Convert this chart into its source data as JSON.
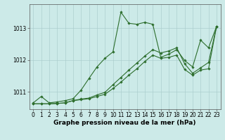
{
  "xlabel": "Graphe pression niveau de la mer (hPa)",
  "ylabel": "",
  "bg_color": "#cceae8",
  "plot_bg_color": "#cceae8",
  "grid_color": "#aacccc",
  "line_color": "#2d6e2d",
  "marker": "D",
  "marker_size": 1.8,
  "line_width": 0.8,
  "xlim": [
    -0.5,
    23.5
  ],
  "ylim": [
    1010.45,
    1013.75
  ],
  "yticks": [
    1011,
    1012,
    1013
  ],
  "xticks": [
    0,
    1,
    2,
    3,
    4,
    5,
    6,
    7,
    8,
    9,
    10,
    11,
    12,
    13,
    14,
    15,
    16,
    17,
    18,
    19,
    20,
    21,
    22,
    23
  ],
  "tick_fontsize": 5.5,
  "xlabel_fontsize": 6.5,
  "series": [
    {
      "x": [
        0,
        1,
        2,
        3,
        4,
        5,
        6,
        7,
        8,
        9,
        10,
        11,
        12,
        13,
        14,
        15,
        16,
        17,
        18,
        19,
        20,
        21,
        22,
        23
      ],
      "y": [
        1010.65,
        1010.85,
        1010.65,
        1010.68,
        1010.72,
        1010.78,
        1011.05,
        1011.42,
        1011.78,
        1012.05,
        1012.25,
        1013.5,
        1013.15,
        1013.12,
        1013.18,
        1013.12,
        1012.08,
        1012.18,
        1012.32,
        1011.98,
        1011.78,
        1012.62,
        1012.38,
        1013.05
      ]
    },
    {
      "x": [
        0,
        1,
        2,
        3,
        4,
        5,
        6,
        7,
        8,
        9,
        10,
        11,
        12,
        13,
        14,
        15,
        16,
        17,
        18,
        19,
        20,
        21,
        22,
        23
      ],
      "y": [
        1010.62,
        1010.62,
        1010.62,
        1010.63,
        1010.65,
        1010.72,
        1010.75,
        1010.78,
        1010.85,
        1010.92,
        1011.1,
        1011.3,
        1011.52,
        1011.72,
        1011.95,
        1012.15,
        1012.05,
        1012.08,
        1012.15,
        1011.7,
        1011.52,
        1011.68,
        1011.72,
        1013.05
      ]
    },
    {
      "x": [
        0,
        1,
        2,
        3,
        4,
        5,
        6,
        7,
        8,
        9,
        10,
        11,
        12,
        13,
        14,
        15,
        16,
        17,
        18,
        19,
        20,
        21,
        22,
        23
      ],
      "y": [
        1010.62,
        1010.62,
        1010.62,
        1010.63,
        1010.65,
        1010.72,
        1010.77,
        1010.8,
        1010.9,
        1010.98,
        1011.22,
        1011.45,
        1011.68,
        1011.9,
        1012.12,
        1012.32,
        1012.22,
        1012.28,
        1012.38,
        1011.88,
        1011.58,
        1011.75,
        1011.92,
        1013.05
      ]
    }
  ]
}
